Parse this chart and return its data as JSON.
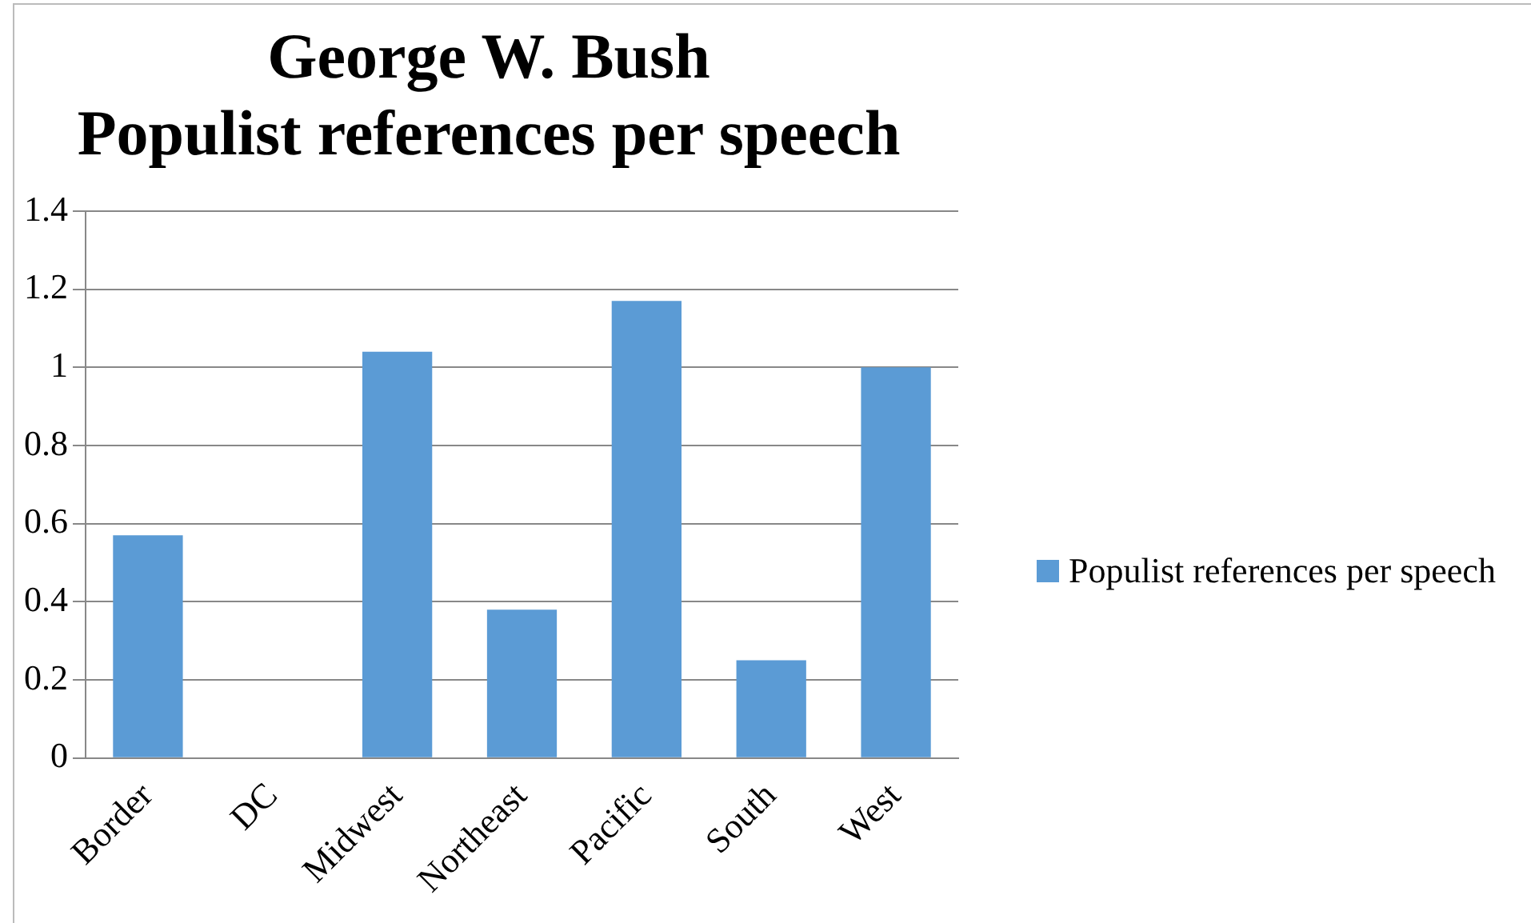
{
  "chart_data": {
    "type": "bar",
    "title": "George W. Bush\nPopulist references per speech",
    "categories": [
      "Border",
      "DC",
      "Midwest",
      "Northeast",
      "Pacific",
      "South",
      "West"
    ],
    "series": [
      {
        "name": "Populist references per speech",
        "color": "#5b9bd5",
        "values": [
          0.57,
          0,
          1.04,
          0.38,
          1.17,
          0.25,
          1.0
        ]
      }
    ],
    "ylim": [
      0,
      1.4
    ],
    "yticks": [
      0,
      0.2,
      0.4,
      0.6,
      0.8,
      1,
      1.2,
      1.4
    ],
    "grid": "y",
    "legend": "right"
  }
}
